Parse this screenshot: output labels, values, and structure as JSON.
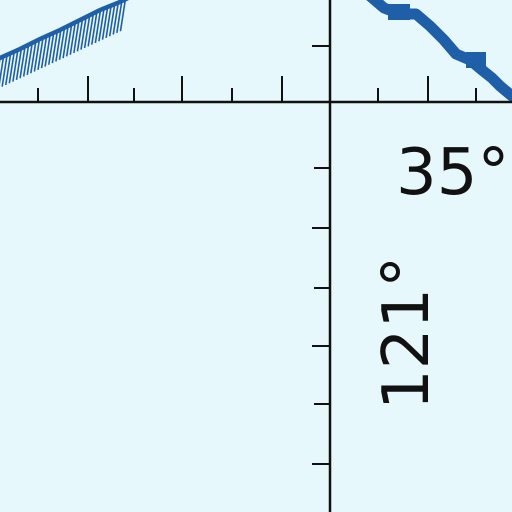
{
  "chart_region": {
    "background": "#e6f8fb",
    "line_color": "#111111",
    "airspace_color": "#1f5fa8"
  },
  "labels": {
    "latitude": "35°",
    "longitude": "121°"
  }
}
